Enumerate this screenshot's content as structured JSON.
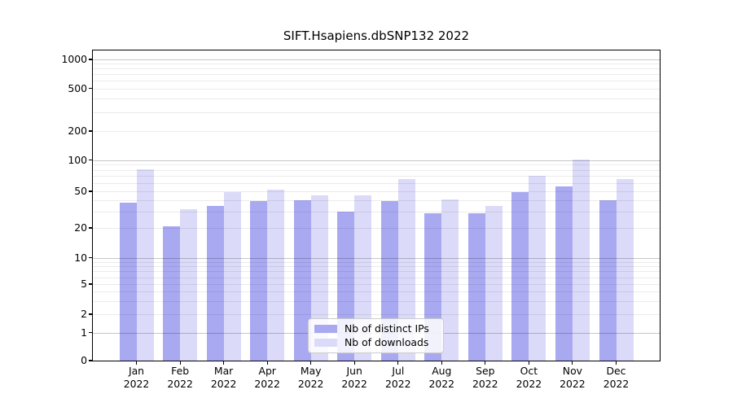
{
  "title": "SIFT.Hsapiens.dbSNP132 2022",
  "chart_data": {
    "type": "bar",
    "title": "SIFT.Hsapiens.dbSNP132 2022",
    "categories": [
      "Jan",
      "Feb",
      "Mar",
      "Apr",
      "May",
      "Jun",
      "Jul",
      "Aug",
      "Sep",
      "Oct",
      "Nov",
      "Dec"
    ],
    "year": "2022",
    "series": [
      {
        "name": "Nb of distinct IPs",
        "color": "#a9a9f2",
        "values": [
          38,
          21,
          35,
          39,
          40,
          30,
          39,
          29,
          29,
          49,
          56,
          40
        ]
      },
      {
        "name": "Nb of downloads",
        "color": "#dbdbf9",
        "values": [
          82,
          32,
          49,
          52,
          45,
          45,
          65,
          41,
          35,
          71,
          101,
          66
        ]
      }
    ],
    "y_ticks": [
      0,
      1,
      2,
      5,
      10,
      20,
      50,
      100,
      200,
      500,
      1000
    ],
    "y_scale": "log1p",
    "ylim": [
      0,
      1259
    ],
    "grid": true,
    "legend_position": "bottom-center"
  },
  "legend": {
    "items": [
      {
        "label": "Nb of distinct IPs",
        "color": "#a9a9f2"
      },
      {
        "label": "Nb of downloads",
        "color": "#dbdbf9"
      }
    ]
  },
  "colors": {
    "background": "#ffffff",
    "bar_ips": "#a9a9f2",
    "bar_downloads": "#dbdbf9",
    "axis": "#000000",
    "text": "#000000",
    "grid_major": "rgba(0,0,0,0.22)",
    "grid_minor": "rgba(0,0,0,0.08)",
    "legend_border": "#cccccc",
    "legend_background": "rgba(255,255,255,0.85)"
  }
}
